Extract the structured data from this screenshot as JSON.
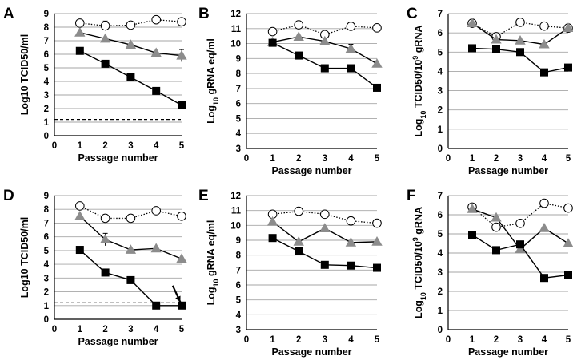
{
  "figure": {
    "colors": {
      "black": "#000000",
      "triangle": "#8c8c8c",
      "circle_fill": "#ffffff",
      "grid": "#a6a6a6"
    }
  },
  "chart_data": [
    {
      "panel": "A",
      "type": "line",
      "xlabel": "Passage number",
      "ylabel": "Log10 TCID50/ml",
      "ylabel_parts": null,
      "xlim": [
        0,
        5
      ],
      "ylim": [
        0,
        9
      ],
      "xticks": [
        "0",
        "1",
        "2",
        "3",
        "4",
        "5"
      ],
      "yticks": [
        "0",
        "1",
        "2",
        "3",
        "4",
        "5",
        "6",
        "7",
        "8",
        "9"
      ],
      "grid": true,
      "x": [
        1,
        2,
        3,
        4,
        5
      ],
      "series": [
        {
          "name": "open-circle",
          "marker": "circle",
          "line": "dotted",
          "values": [
            8.3,
            8.1,
            8.15,
            8.55,
            8.4
          ],
          "errors": [
            0,
            0.35,
            0,
            0,
            0
          ]
        },
        {
          "name": "gray-triangle",
          "marker": "triangle",
          "line": "solid",
          "values": [
            7.6,
            7.15,
            6.7,
            6.1,
            5.9
          ],
          "errors": [
            0,
            0,
            0,
            0,
            0.45
          ]
        },
        {
          "name": "black-square",
          "marker": "square",
          "line": "solid",
          "values": [
            6.25,
            5.3,
            4.3,
            3.3,
            2.25
          ],
          "errors": [
            0,
            0,
            0,
            0,
            0
          ]
        }
      ],
      "reference_line": {
        "value": 1.2,
        "style": "dashed"
      },
      "annotation_arrow": null
    },
    {
      "panel": "B",
      "type": "line",
      "xlabel": "Passage number",
      "ylabel": "Log10 gRNA eq/ml",
      "ylabel_parts": [
        "Log",
        "10",
        " gRNA eq/ml"
      ],
      "xlim": [
        0,
        5
      ],
      "ylim": [
        3,
        12
      ],
      "xticks": [
        "0",
        "1",
        "2",
        "3",
        "4",
        "5"
      ],
      "yticks": [
        "3",
        "4",
        "5",
        "6",
        "7",
        "8",
        "9",
        "10",
        "11",
        "12"
      ],
      "grid": true,
      "x": [
        1,
        2,
        3,
        4,
        5
      ],
      "series": [
        {
          "name": "open-circle",
          "marker": "circle",
          "line": "dotted",
          "values": [
            10.8,
            11.25,
            10.6,
            11.15,
            11.05
          ],
          "errors": [
            0,
            0,
            0,
            0,
            0
          ]
        },
        {
          "name": "gray-triangle",
          "marker": "triangle",
          "line": "solid",
          "values": [
            10.1,
            10.45,
            10.15,
            9.65,
            8.65
          ],
          "errors": [
            0,
            0,
            0,
            0.3,
            0
          ]
        },
        {
          "name": "black-square",
          "marker": "square",
          "line": "solid",
          "values": [
            10.05,
            9.2,
            8.35,
            8.35,
            7.05
          ],
          "errors": [
            0,
            0,
            0,
            0,
            0
          ]
        }
      ],
      "reference_line": null,
      "annotation_arrow": null
    },
    {
      "panel": "C",
      "type": "line",
      "xlabel": "Passage number",
      "ylabel": "Log10 TCID50/10^9 gRNA",
      "ylabel_parts": [
        "Log",
        "10",
        " TCID50/10",
        "9",
        " gRNA"
      ],
      "xlim": [
        0,
        5
      ],
      "ylim": [
        0,
        7
      ],
      "xticks": [
        "0",
        "1",
        "2",
        "3",
        "4",
        "5"
      ],
      "yticks": [
        "0",
        "1",
        "2",
        "3",
        "4",
        "5",
        "6",
        "7"
      ],
      "grid": true,
      "x": [
        1,
        2,
        3,
        4,
        5
      ],
      "series": [
        {
          "name": "open-circle",
          "marker": "circle",
          "line": "dotted",
          "values": [
            6.5,
            5.8,
            6.55,
            6.35,
            6.25
          ],
          "errors": [
            0,
            0,
            0,
            0,
            0
          ]
        },
        {
          "name": "gray-triangle",
          "marker": "triangle",
          "line": "solid",
          "values": [
            6.5,
            5.65,
            5.6,
            5.4,
            6.25
          ],
          "errors": [
            0,
            0,
            0,
            0,
            0
          ]
        },
        {
          "name": "black-square",
          "marker": "square",
          "line": "solid",
          "values": [
            5.2,
            5.15,
            5.0,
            3.95,
            4.2
          ],
          "errors": [
            0,
            0,
            0,
            0,
            0
          ]
        }
      ],
      "reference_line": null,
      "annotation_arrow": null
    },
    {
      "panel": "D",
      "type": "line",
      "xlabel": "Passage number",
      "ylabel": "Log10 TCID50/ml",
      "ylabel_parts": null,
      "xlim": [
        0,
        5
      ],
      "ylim": [
        0,
        9
      ],
      "xticks": [
        "0",
        "1",
        "2",
        "3",
        "4",
        "5"
      ],
      "yticks": [
        "0",
        "1",
        "2",
        "3",
        "4",
        "5",
        "6",
        "7",
        "8",
        "9"
      ],
      "grid": true,
      "x": [
        1,
        2,
        3,
        4,
        5
      ],
      "series": [
        {
          "name": "open-circle",
          "marker": "circle",
          "line": "dotted",
          "values": [
            8.25,
            7.35,
            7.35,
            7.9,
            7.5
          ],
          "errors": [
            0,
            0,
            0,
            0,
            0
          ]
        },
        {
          "name": "gray-triangle",
          "marker": "triangle",
          "line": "solid",
          "values": [
            7.5,
            5.8,
            5.05,
            5.15,
            4.4
          ],
          "errors": [
            0,
            0.45,
            0,
            0,
            0
          ]
        },
        {
          "name": "black-square",
          "marker": "square",
          "line": "solid",
          "values": [
            5.05,
            3.4,
            2.85,
            1.0,
            1.0
          ],
          "errors": [
            0,
            0,
            0,
            0,
            0
          ]
        }
      ],
      "reference_line": {
        "value": 1.2,
        "style": "dashed"
      },
      "annotation_arrow": {
        "from": [
          4.65,
          2.45
        ],
        "to": [
          4.95,
          1.25
        ]
      }
    },
    {
      "panel": "E",
      "type": "line",
      "xlabel": "Passage number",
      "ylabel": "Log10 gRNA eq/ml",
      "ylabel_parts": [
        "Log",
        "10",
        " gRNA eq/ml"
      ],
      "xlim": [
        0,
        5
      ],
      "ylim": [
        3,
        12
      ],
      "xticks": [
        "0",
        "1",
        "2",
        "3",
        "4",
        "5"
      ],
      "yticks": [
        "3",
        "4",
        "5",
        "6",
        "7",
        "8",
        "9",
        "10",
        "11",
        "12"
      ],
      "grid": true,
      "x": [
        1,
        2,
        3,
        4,
        5
      ],
      "series": [
        {
          "name": "open-circle",
          "marker": "circle",
          "line": "dotted",
          "values": [
            10.75,
            10.95,
            10.75,
            10.3,
            10.15
          ],
          "errors": [
            0,
            0,
            0,
            0,
            0
          ]
        },
        {
          "name": "gray-triangle",
          "marker": "triangle",
          "line": "solid",
          "values": [
            10.25,
            8.9,
            9.8,
            8.85,
            8.9
          ],
          "errors": [
            0,
            0,
            0,
            0,
            0
          ]
        },
        {
          "name": "black-square",
          "marker": "square",
          "line": "solid",
          "values": [
            9.15,
            8.25,
            7.35,
            7.3,
            7.15
          ],
          "errors": [
            0,
            0,
            0,
            0,
            0
          ]
        }
      ],
      "reference_line": null,
      "annotation_arrow": null
    },
    {
      "panel": "F",
      "type": "line",
      "xlabel": "Passage number",
      "ylabel": "Log10 TCID50/10^9 gRNA",
      "ylabel_parts": [
        "Log",
        "10",
        " TCID50/10",
        "9",
        " gRNA"
      ],
      "xlim": [
        0,
        5
      ],
      "ylim": [
        0,
        7
      ],
      "xticks": [
        "0",
        "1",
        "2",
        "3",
        "4",
        "5"
      ],
      "yticks": [
        "0",
        "1",
        "2",
        "3",
        "4",
        "5",
        "6",
        "7"
      ],
      "grid": true,
      "x": [
        1,
        2,
        3,
        4,
        5
      ],
      "series": [
        {
          "name": "open-circle",
          "marker": "circle",
          "line": "dotted",
          "values": [
            6.4,
            5.35,
            5.55,
            6.6,
            6.35
          ],
          "errors": [
            0,
            0,
            0,
            0,
            0
          ]
        },
        {
          "name": "gray-triangle",
          "marker": "triangle",
          "line": "solid",
          "values": [
            6.3,
            5.85,
            4.2,
            5.3,
            4.5
          ],
          "errors": [
            0,
            0,
            0,
            0,
            0
          ]
        },
        {
          "name": "black-square",
          "marker": "square",
          "line": "solid",
          "values": [
            4.95,
            4.15,
            4.45,
            2.7,
            2.85
          ],
          "errors": [
            0,
            0,
            0,
            0,
            0
          ]
        }
      ],
      "reference_line": null,
      "annotation_arrow": null
    }
  ]
}
